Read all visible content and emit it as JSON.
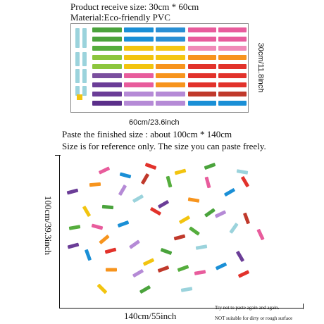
{
  "header": {
    "receive_size": "Product receive size: 30cm * 60cm",
    "material": "Material:Eco-friendly PVC"
  },
  "sheet": {
    "width_label": "60cm/23.6inch",
    "height_label": "30cm/11.8inch",
    "columns": [
      [
        "#9bd3dc",
        "#9bd3dc",
        "#9bd3dc",
        "#9bd3dc",
        "#9bd3dc",
        "#9bd3dc",
        "#9bd3dc",
        "#9bd3dc",
        "#9bd3dc"
      ],
      [
        "#4aa33c",
        "#4aa33c",
        "#55ad3d",
        "#8cc63e",
        "#8cc63e",
        "#7a4f9e",
        "#6b3d97",
        "#6b3d97",
        "#5b2f8a"
      ],
      [
        "#1a8fd6",
        "#1a8fd6",
        "#f2c40f",
        "#f2c40f",
        "#f2c40f",
        "#e85c9c",
        "#e85c9c",
        "#b58ad6",
        "#b58ad6"
      ],
      [
        "#2a8fd4",
        "#2a8fd4",
        "#f4c613",
        "#f4c613",
        "#f7941d",
        "#f7941d",
        "#f7941d",
        "#b58ad6",
        "#b58ad6"
      ],
      [
        "#e85c9c",
        "#e85c9c",
        "#f08bb8",
        "#f7941d",
        "#e2322b",
        "#e2322b",
        "#e2322b",
        "#c0392b",
        "#1a8fd6"
      ],
      [
        "#e85c9c",
        "#e85c9c",
        "#f08bb8",
        "#f7941d",
        "#e2322b",
        "#e2322b",
        "#e2322b",
        "#c0392b",
        "#1a8fd6"
      ]
    ]
  },
  "paste": {
    "finished_size": "Paste the finished size : about 100cm * 140cm",
    "note": "Size is for reference only. The size you can paste freely.",
    "height_label": "100cm/39.3inch",
    "width_label": "140cm/55inch",
    "warning_1": "Try not to paste again and again.",
    "warning_2": "NOT suitable for dirty or rough surface"
  },
  "scatter_colors": [
    "#e85c9c",
    "#1a8fd6",
    "#e2322b",
    "#f2c40f",
    "#4aa33c",
    "#9bd3dc",
    "#6b3d97",
    "#f7941d",
    "#b58ad6",
    "#c0392b",
    "#55ad3d"
  ]
}
